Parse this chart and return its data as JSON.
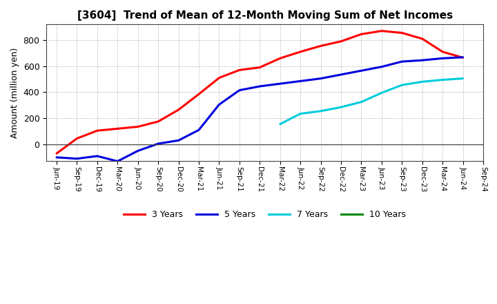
{
  "title": "[3604]  Trend of Mean of 12-Month Moving Sum of Net Incomes",
  "ylabel": "Amount (million yen)",
  "background_color": "#ffffff",
  "plot_bg_color": "#ffffff",
  "grid_color": "#999999",
  "ylim": [
    -130,
    920
  ],
  "yticks": [
    0,
    200,
    400,
    600,
    800
  ],
  "x_labels": [
    "Jun-19",
    "Sep-19",
    "Dec-19",
    "Mar-20",
    "Jun-20",
    "Sep-20",
    "Dec-20",
    "Mar-21",
    "Jun-21",
    "Sep-21",
    "Dec-21",
    "Mar-22",
    "Jun-22",
    "Sep-22",
    "Dec-22",
    "Mar-23",
    "Jun-23",
    "Sep-23",
    "Dec-23",
    "Mar-24",
    "Jun-24",
    "Sep-24"
  ],
  "series": {
    "3 Years": {
      "color": "#ff0000",
      "linewidth": 2.2,
      "data_x": [
        0,
        1,
        2,
        3,
        4,
        5,
        6,
        7,
        8,
        9,
        10,
        11,
        12,
        13,
        14,
        15,
        16,
        17,
        18,
        19,
        20
      ],
      "data_y": [
        -70,
        45,
        105,
        120,
        135,
        175,
        265,
        385,
        510,
        570,
        590,
        660,
        710,
        755,
        790,
        845,
        870,
        855,
        810,
        710,
        665
      ]
    },
    "5 Years": {
      "color": "#0000dd",
      "linewidth": 2.2,
      "data_x": [
        0,
        1,
        2,
        3,
        4,
        5,
        6,
        7,
        8,
        9,
        10,
        11,
        12,
        13,
        14,
        15,
        16,
        17,
        18,
        19,
        20
      ],
      "data_y": [
        -100,
        -110,
        -90,
        -130,
        -50,
        5,
        30,
        110,
        305,
        415,
        445,
        465,
        485,
        505,
        535,
        565,
        595,
        635,
        645,
        660,
        668
      ]
    },
    "7 Years": {
      "color": "#00ccdd",
      "linewidth": 2.2,
      "data_x": [
        11,
        12,
        13,
        14,
        15,
        16,
        17,
        18,
        19,
        20
      ],
      "data_y": [
        155,
        235,
        255,
        285,
        325,
        395,
        455,
        480,
        495,
        505
      ]
    },
    "10 Years": {
      "color": "#008800",
      "linewidth": 2.2,
      "data_x": [],
      "data_y": []
    }
  },
  "legend_labels": [
    "3 Years",
    "5 Years",
    "7 Years",
    "10 Years"
  ],
  "legend_colors": [
    "#ff0000",
    "#0000dd",
    "#00ccdd",
    "#008800"
  ]
}
